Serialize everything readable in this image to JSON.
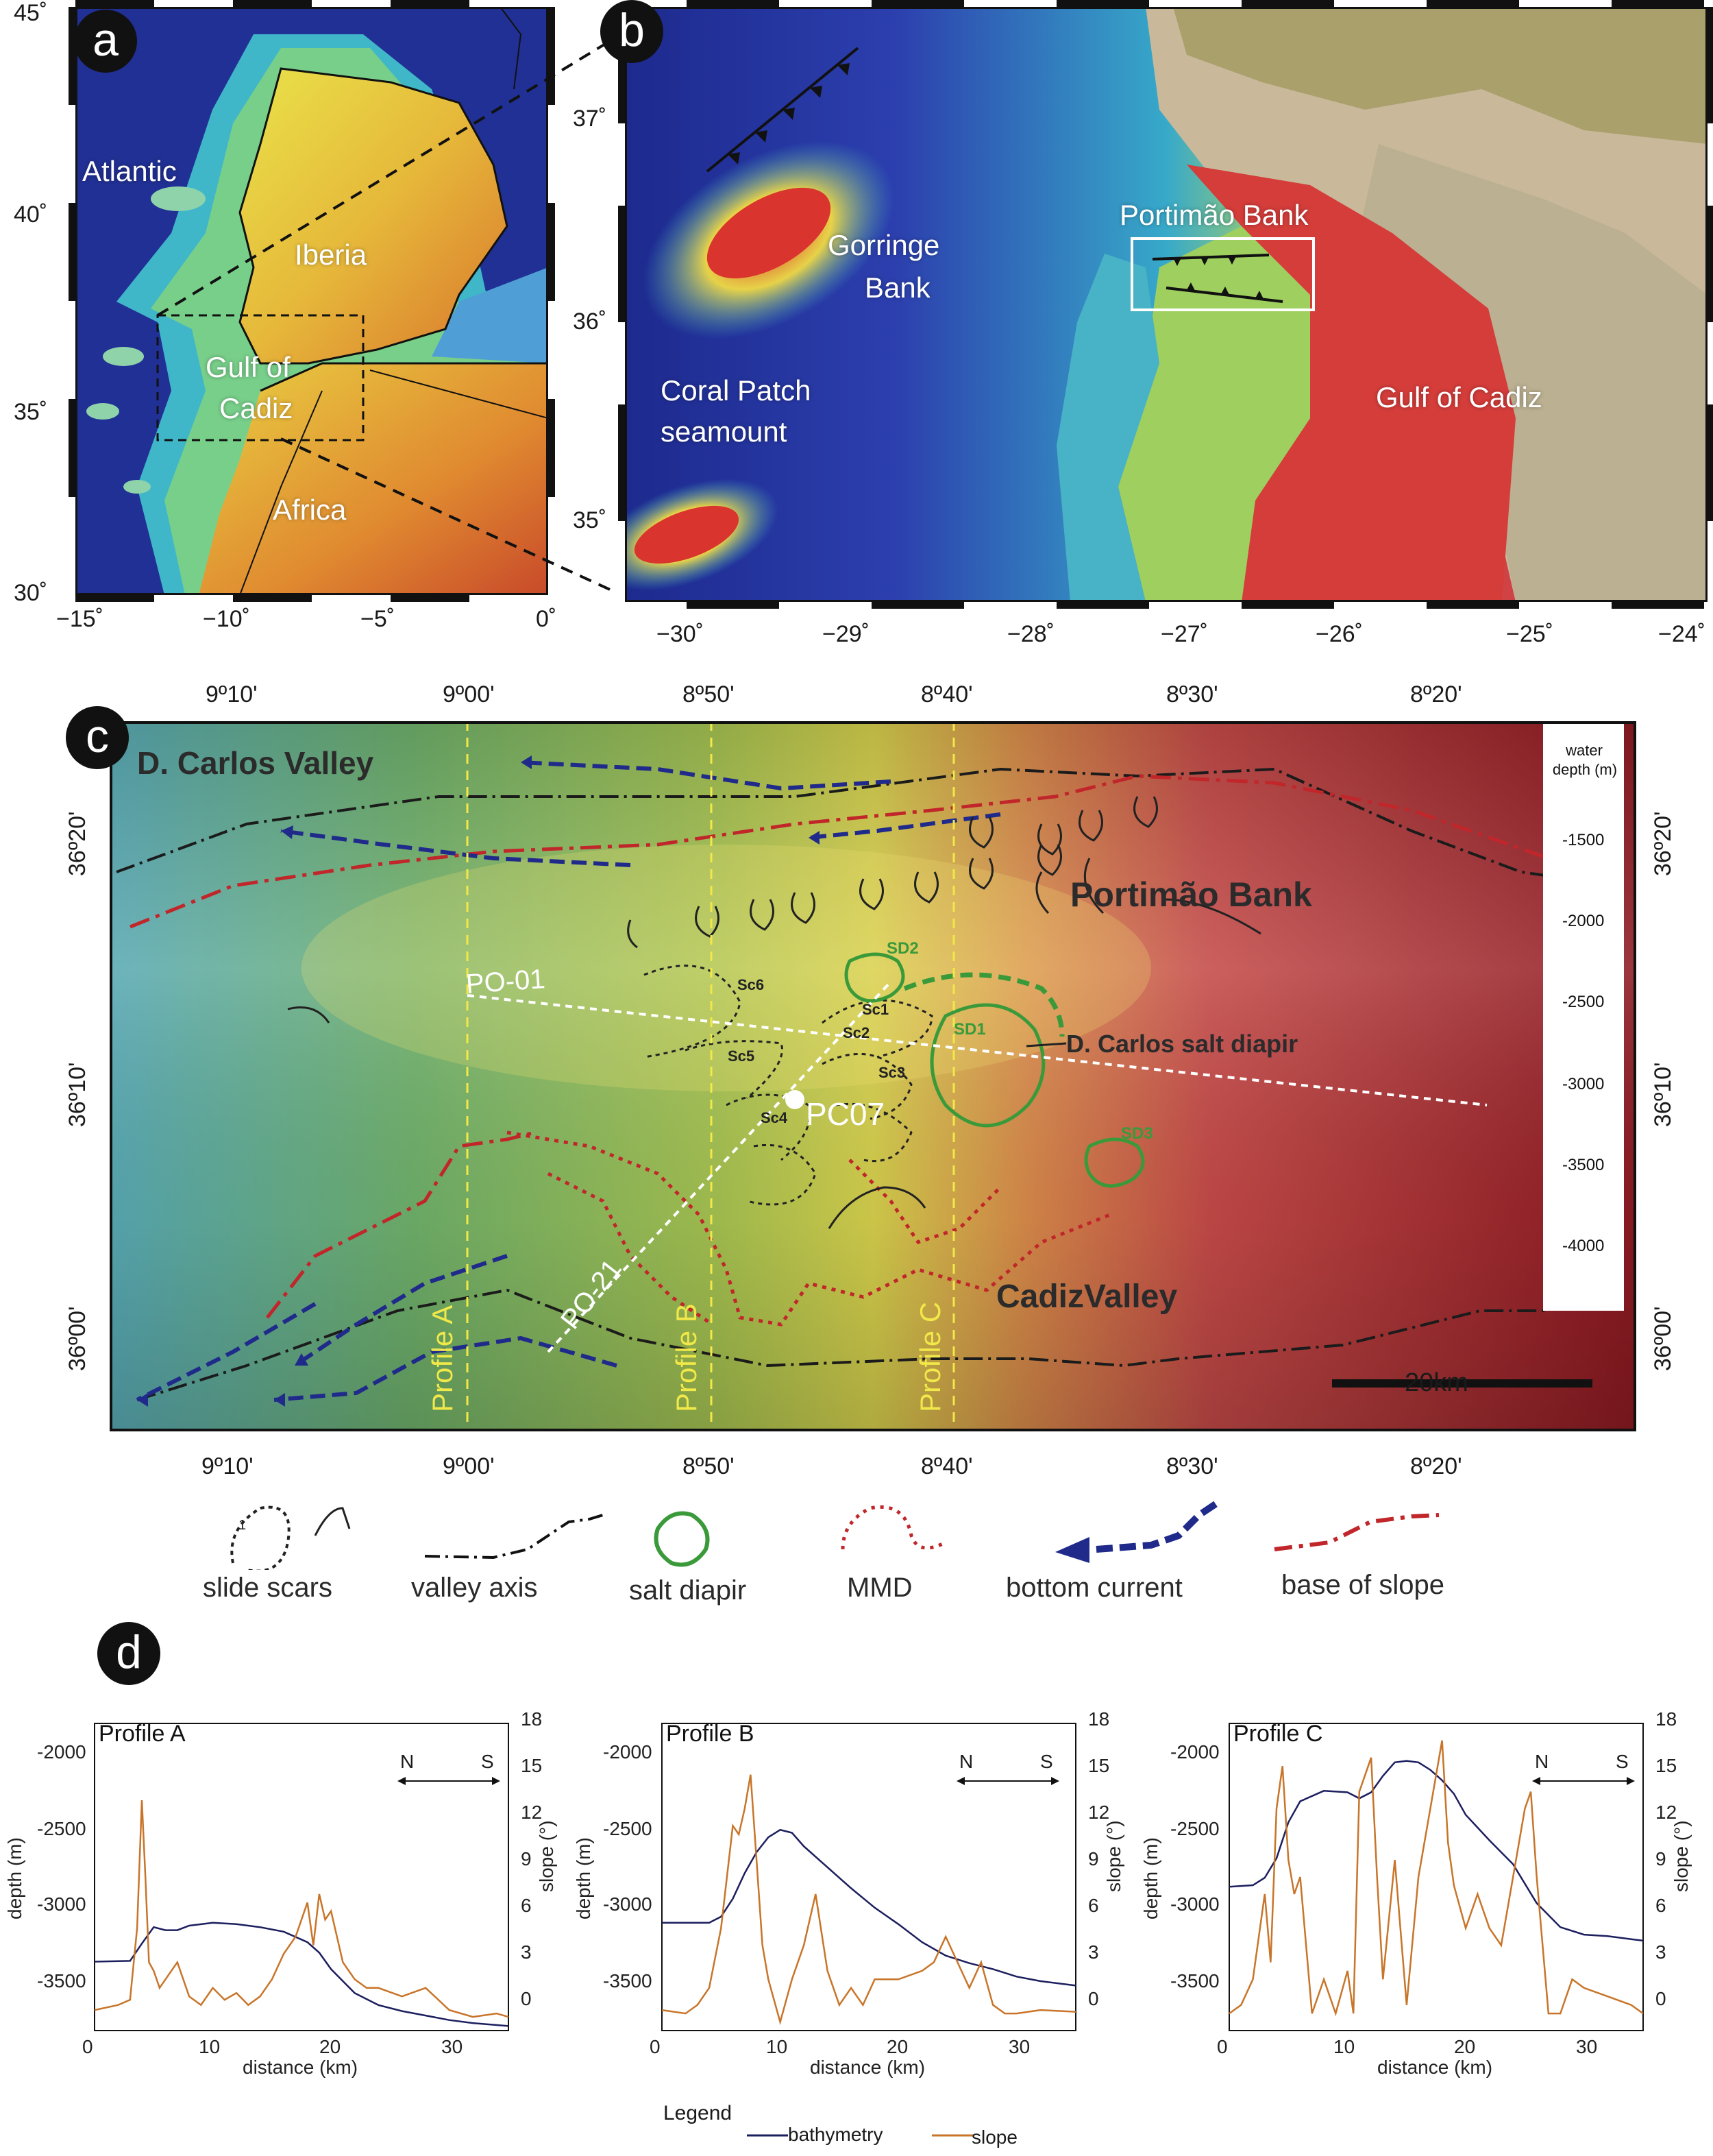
{
  "panels": {
    "a": "a",
    "b": "b",
    "c": "c",
    "d": "d"
  },
  "panel_a": {
    "labels": {
      "atlantic": "Atlantic",
      "iberia": "Iberia",
      "gulf_line1": "Gulf of",
      "gulf_line2": "Cadiz",
      "africa": "Africa"
    },
    "lat_ticks": [
      "45˚",
      "40˚",
      "35˚",
      "30˚"
    ],
    "lon_ticks": [
      "−15˚",
      "−10˚",
      "−5˚",
      "0˚"
    ]
  },
  "panel_b": {
    "labels": {
      "gorringe_line1": "Gorringe",
      "gorringe_line2": "Bank",
      "coral_line1": "Coral Patch",
      "coral_line2": "seamount",
      "portimao": "Portimão Bank",
      "gulf": "Gulf of Cadiz"
    },
    "lat_ticks": [
      "37˚",
      "36˚",
      "35˚"
    ],
    "lon_ticks": [
      "−30˚",
      "−29˚",
      "−28˚",
      "−27˚",
      "−26˚",
      "−25˚",
      "−24˚"
    ]
  },
  "panel_c": {
    "top_ticks": [
      "9º10'",
      "9º00'",
      "8º50'",
      "8º40'",
      "8º30'",
      "8º20'"
    ],
    "bottom_ticks": [
      "9º10'",
      "9º00'",
      "8º50'",
      "8º40'",
      "8º30'",
      "8º20'"
    ],
    "left_ticks": [
      "36º20'",
      "36º10'",
      "36º00'"
    ],
    "right_ticks": [
      "36º20'",
      "36º10'",
      "36º00'"
    ],
    "labels": {
      "dcarlos_valley": "D. Carlos Valley",
      "portimao_bank": "Portimão Bank",
      "cadiz_valley": "CadizValley",
      "salt_diapir": "D. Carlos salt diapir",
      "po01": "PO-01",
      "po21": "PO-21",
      "pc07": "PC07",
      "profile_a": "Profile A",
      "profile_b": "Profile B",
      "profile_c": "Profile C",
      "sd1": "SD1",
      "sd2": "SD2",
      "sd3": "SD3",
      "sc1": "Sc1",
      "sc2": "Sc2",
      "sc3": "Sc3",
      "sc4": "Sc4",
      "sc5": "Sc5",
      "sc6": "Sc6",
      "scale": "20km"
    },
    "depth_scale": {
      "title_line1": "water",
      "title_line2": "depth (m)",
      "values": [
        "-1500",
        "-2000",
        "-2500",
        "-3000",
        "-3500",
        "-4000"
      ]
    }
  },
  "legend_c": {
    "slide_scars": "slide scars",
    "slide_num": "1",
    "valley_axis": "valley axis",
    "salt_diapir": "salt diapir",
    "mmd": "MMD",
    "bottom_current": "bottom current",
    "base_of_slope": "base of slope"
  },
  "profiles": {
    "depth_ticks": [
      "-2000",
      "-2500",
      "-3000",
      "-3500"
    ],
    "slope_ticks": [
      "18",
      "15",
      "12",
      "9",
      "6",
      "3",
      "0"
    ],
    "distance_ticks": [
      "0",
      "10",
      "20",
      "30"
    ],
    "depth_label": "depth (m)",
    "slope_label": "slope (°)",
    "distance_label": "distance (km)",
    "north": "N",
    "south": "S",
    "legend_title": "Legend",
    "legend_bathymetry": "bathymetry",
    "legend_slope": "slope"
  },
  "colors": {
    "bathymetry": "#1c1f5e",
    "slope": "#c8752a",
    "salt": "#3a9a3a",
    "mmd": "#c0262a",
    "current": "#1f2a8a",
    "profile_line": "#f1e84a"
  },
  "chart_data": [
    {
      "type": "line",
      "title": "Profile A",
      "xlabel": "distance (km)",
      "ylabel": "depth (m)",
      "y2label": "slope (°)",
      "xlim": [
        0,
        35
      ],
      "ylim": [
        -3750,
        -1700
      ],
      "y2lim": [
        0,
        18
      ],
      "series": [
        {
          "name": "bathymetry",
          "x": [
            0,
            3,
            4,
            5,
            6,
            7,
            8,
            10,
            12,
            14,
            16,
            18,
            19,
            20,
            22,
            24,
            26,
            28,
            30,
            32,
            35
          ],
          "y": [
            -3290,
            -3285,
            -3170,
            -3060,
            -3080,
            -3080,
            -3050,
            -3030,
            -3040,
            -3060,
            -3090,
            -3160,
            -3230,
            -3340,
            -3500,
            -3580,
            -3620,
            -3650,
            -3680,
            -3700,
            -3720
          ]
        },
        {
          "name": "slope",
          "x": [
            0,
            2,
            3,
            3.6,
            4,
            4.3,
            4.6,
            5,
            5.5,
            6,
            7,
            8,
            9,
            10,
            11,
            12,
            13,
            14,
            15,
            16,
            17,
            17.5,
            18,
            18.5,
            19,
            19.5,
            20,
            21,
            22,
            23,
            24,
            26,
            28,
            30,
            32,
            34,
            35
          ],
          "y": [
            1.2,
            1.5,
            1.8,
            6,
            13.5,
            9,
            4,
            3.5,
            2.5,
            3,
            4,
            2,
            1.5,
            2.5,
            1.8,
            2.2,
            1.5,
            2,
            3,
            4.5,
            5.5,
            6.5,
            7.5,
            5,
            8,
            6.5,
            7,
            4,
            3,
            2.5,
            2.5,
            2,
            2.5,
            1.2,
            0.8,
            1,
            0.8
          ]
        }
      ]
    },
    {
      "type": "line",
      "title": "Profile B",
      "xlabel": "distance (km)",
      "ylabel": "depth (m)",
      "y2label": "slope (°)",
      "xlim": [
        0,
        35
      ],
      "ylim": [
        -3750,
        -1700
      ],
      "y2lim": [
        0,
        18
      ],
      "series": [
        {
          "name": "bathymetry",
          "x": [
            0,
            4,
            5,
            6,
            7,
            8,
            9,
            10,
            11,
            12,
            14,
            16,
            18,
            20,
            22,
            24,
            26,
            28,
            30,
            32,
            35
          ],
          "y": [
            -3030,
            -3030,
            -2990,
            -2870,
            -2700,
            -2560,
            -2460,
            -2410,
            -2430,
            -2520,
            -2660,
            -2800,
            -2930,
            -3040,
            -3160,
            -3250,
            -3300,
            -3340,
            -3390,
            -3420,
            -3450
          ]
        },
        {
          "name": "slope",
          "x": [
            0,
            2,
            3,
            4,
            5,
            5.5,
            6,
            6.5,
            7,
            7.5,
            8,
            8.5,
            9,
            10,
            11,
            12,
            13,
            14,
            15,
            16,
            17,
            18,
            20,
            22,
            23,
            24,
            25,
            26,
            27,
            28,
            29,
            30,
            32,
            35
          ],
          "y": [
            1.2,
            1,
            1.5,
            2.5,
            6,
            9,
            12,
            11.5,
            13,
            15,
            10,
            5,
            3,
            0.5,
            3,
            5,
            8,
            3.5,
            1.5,
            2.5,
            1.5,
            3,
            3,
            3.5,
            4,
            5.5,
            4,
            2.5,
            4,
            1.5,
            1,
            1,
            1.2,
            1.1
          ]
        }
      ]
    },
    {
      "type": "line",
      "title": "Profile C",
      "xlabel": "distance (km)",
      "ylabel": "depth (m)",
      "y2label": "slope (°)",
      "xlim": [
        0,
        35
      ],
      "ylim": [
        -3750,
        -1700
      ],
      "y2lim": [
        0,
        18
      ],
      "series": [
        {
          "name": "bathymetry",
          "x": [
            0,
            2,
            3,
            4,
            5,
            6,
            8,
            10,
            11,
            12,
            13,
            14,
            15,
            16,
            17,
            18,
            19,
            20,
            22,
            24,
            26,
            28,
            30,
            32,
            34,
            35
          ],
          "y": [
            -2790,
            -2780,
            -2730,
            -2600,
            -2360,
            -2220,
            -2150,
            -2160,
            -2200,
            -2160,
            -2050,
            -1960,
            -1950,
            -1960,
            -2010,
            -2080,
            -2170,
            -2310,
            -2480,
            -2640,
            -2900,
            -3060,
            -3110,
            -3120,
            -3140,
            -3150
          ]
        },
        {
          "name": "slope",
          "x": [
            0,
            1,
            2,
            3,
            3.5,
            4,
            4.5,
            5,
            5.5,
            6,
            7,
            8,
            9,
            10,
            10.5,
            11,
            12,
            12.5,
            13,
            14,
            15,
            16,
            17,
            18,
            18.5,
            19,
            20,
            21,
            22,
            23,
            24,
            25,
            25.5,
            26,
            27,
            28,
            29,
            30,
            32,
            34,
            35
          ],
          "y": [
            1,
            1.5,
            3,
            8,
            4,
            13,
            15.5,
            10,
            8,
            9,
            1,
            3,
            1,
            3.5,
            1,
            14,
            16,
            9,
            3,
            10,
            1.5,
            9,
            13,
            17,
            11,
            8.5,
            6,
            8,
            6,
            5,
            9,
            13,
            14,
            9,
            1,
            1,
            3,
            2.5,
            2,
            1.5,
            1
          ]
        }
      ]
    }
  ]
}
